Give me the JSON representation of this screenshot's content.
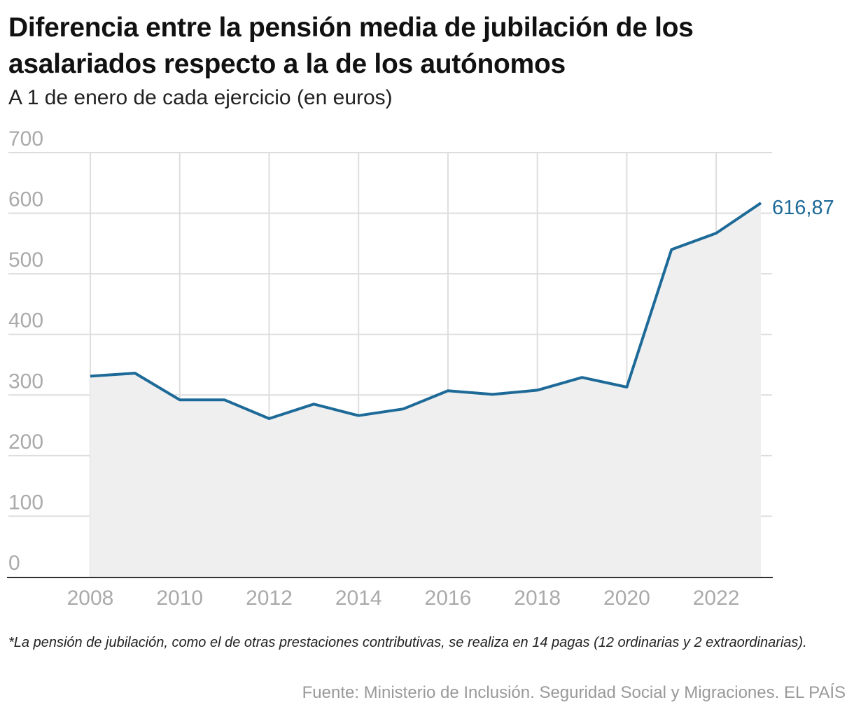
{
  "title": "Diferencia entre la pensión media de jubilación de los asalariados respecto a la de los autónomos",
  "subtitle": "A 1 de enero de cada ejercicio (en euros)",
  "note": "*La pensión de jubilación, como el de otras prestaciones contributivas, se realiza en 14 pagas (12 ordinarias y 2 extraordinarias).",
  "source": "Fuente: Ministerio de Inclusión. Seguridad Social y Migraciones. EL PAÍS",
  "colors": {
    "line": "#1d6a98",
    "area": "#efefef",
    "grid": "#dddddd",
    "axis": "#333333",
    "tick": "#aaaaaa"
  },
  "chart_data": {
    "type": "area",
    "x": [
      2008,
      2009,
      2010,
      2011,
      2012,
      2013,
      2014,
      2015,
      2016,
      2017,
      2018,
      2019,
      2020,
      2021,
      2022,
      2023
    ],
    "series": [
      {
        "values": [
          331,
          336,
          292,
          292,
          261,
          285,
          266,
          277,
          307,
          301,
          308,
          329,
          313,
          540,
          567,
          616.87
        ]
      }
    ],
    "end_label": "616,87",
    "xlim": [
      2008,
      2023
    ],
    "ylim": [
      0,
      700
    ],
    "xticks": [
      2008,
      2010,
      2012,
      2014,
      2016,
      2018,
      2020,
      2022
    ],
    "xtick_labels": [
      "2008",
      "2010",
      "2012",
      "2014",
      "2016",
      "2018",
      "2020",
      "2022"
    ],
    "yticks": [
      0,
      100,
      200,
      300,
      400,
      500,
      600,
      700
    ],
    "ytick_labels": [
      "0",
      "100",
      "200",
      "300",
      "400",
      "500",
      "600",
      "700"
    ],
    "grid": true
  }
}
